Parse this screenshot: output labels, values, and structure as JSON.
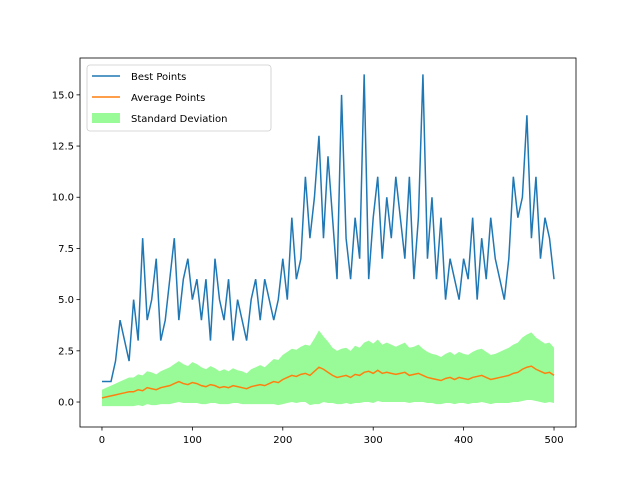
{
  "chart_data": {
    "type": "line",
    "title": "",
    "xlabel": "",
    "ylabel": "",
    "xlim": [
      -24.3,
      524.3
    ],
    "ylim": [
      -1.22,
      16.8
    ],
    "xticks": [
      0,
      100,
      200,
      300,
      400,
      500
    ],
    "xtick_labels": [
      "0",
      "100",
      "200",
      "300",
      "400",
      "500"
    ],
    "yticks": [
      0,
      2.5,
      5,
      7.5,
      10,
      12.5,
      15
    ],
    "ytick_labels": [
      "0.0",
      "2.5",
      "5.0",
      "7.5",
      "10.0",
      "12.5",
      "15.0"
    ],
    "legend_position": "upper-left",
    "legend": [
      "Best Points",
      "Average Points",
      "Standard Deviation"
    ],
    "colors": {
      "best": "#1f77b4",
      "average": "#ff7f0e",
      "std": "#98fb98"
    },
    "x_step": 5,
    "x_start": 0,
    "series": [
      {
        "name": "Best Points",
        "values": [
          1,
          1,
          1,
          2,
          4,
          3,
          2,
          5,
          3,
          8,
          4,
          5,
          7,
          3,
          4,
          6,
          8,
          4,
          6,
          7,
          5,
          6,
          4,
          6,
          3,
          7,
          5,
          4,
          6,
          3,
          5,
          4,
          3,
          5,
          6,
          4,
          6,
          5,
          4,
          5,
          7,
          5,
          9,
          6,
          7,
          11,
          8,
          10,
          13,
          8,
          12,
          9,
          6,
          15,
          8,
          6,
          9,
          7,
          16,
          6,
          9,
          11,
          7,
          10,
          8,
          11,
          9,
          7,
          11,
          6,
          9,
          16,
          7,
          10,
          6,
          9,
          5,
          7,
          6,
          5,
          7,
          6,
          9,
          5,
          8,
          6,
          9,
          7,
          6,
          5,
          7,
          11,
          9,
          10,
          14,
          8,
          11,
          7,
          9,
          8,
          6
        ]
      },
      {
        "name": "Average Points",
        "values": [
          0.2,
          0.25,
          0.3,
          0.35,
          0.4,
          0.45,
          0.5,
          0.5,
          0.6,
          0.55,
          0.7,
          0.65,
          0.6,
          0.7,
          0.75,
          0.8,
          0.9,
          1.0,
          0.9,
          0.85,
          0.95,
          0.9,
          0.8,
          0.75,
          0.85,
          0.8,
          0.7,
          0.75,
          0.7,
          0.8,
          0.75,
          0.7,
          0.65,
          0.75,
          0.8,
          0.85,
          0.8,
          0.9,
          1.0,
          0.95,
          1.1,
          1.2,
          1.3,
          1.25,
          1.35,
          1.4,
          1.3,
          1.5,
          1.7,
          1.6,
          1.45,
          1.3,
          1.2,
          1.25,
          1.3,
          1.2,
          1.35,
          1.3,
          1.45,
          1.5,
          1.4,
          1.55,
          1.4,
          1.45,
          1.4,
          1.35,
          1.4,
          1.45,
          1.3,
          1.35,
          1.4,
          1.3,
          1.2,
          1.15,
          1.1,
          1.05,
          1.15,
          1.2,
          1.1,
          1.2,
          1.15,
          1.1,
          1.2,
          1.25,
          1.3,
          1.2,
          1.1,
          1.15,
          1.2,
          1.25,
          1.3,
          1.4,
          1.45,
          1.6,
          1.7,
          1.75,
          1.6,
          1.5,
          1.4,
          1.45,
          1.3
        ]
      },
      {
        "name": "Standard Deviation",
        "values": [
          0.4,
          0.45,
          0.5,
          0.55,
          0.6,
          0.65,
          0.7,
          0.7,
          0.75,
          0.75,
          0.8,
          0.8,
          0.75,
          0.8,
          0.85,
          0.9,
          0.95,
          1.0,
          0.95,
          0.9,
          1.0,
          0.95,
          0.9,
          0.85,
          0.9,
          0.85,
          0.8,
          0.85,
          0.8,
          0.85,
          0.8,
          0.8,
          0.75,
          0.85,
          0.9,
          0.95,
          0.9,
          1.0,
          1.1,
          1.1,
          1.2,
          1.25,
          1.3,
          1.3,
          1.35,
          1.4,
          1.45,
          1.6,
          1.8,
          1.6,
          1.5,
          1.35,
          1.3,
          1.35,
          1.35,
          1.3,
          1.4,
          1.35,
          1.45,
          1.5,
          1.45,
          1.5,
          1.4,
          1.45,
          1.4,
          1.35,
          1.4,
          1.45,
          1.35,
          1.35,
          1.4,
          1.3,
          1.25,
          1.2,
          1.2,
          1.15,
          1.2,
          1.25,
          1.2,
          1.25,
          1.2,
          1.2,
          1.25,
          1.3,
          1.3,
          1.25,
          1.2,
          1.2,
          1.25,
          1.3,
          1.35,
          1.4,
          1.45,
          1.55,
          1.6,
          1.65,
          1.55,
          1.5,
          1.45,
          1.45,
          1.35
        ]
      }
    ]
  }
}
